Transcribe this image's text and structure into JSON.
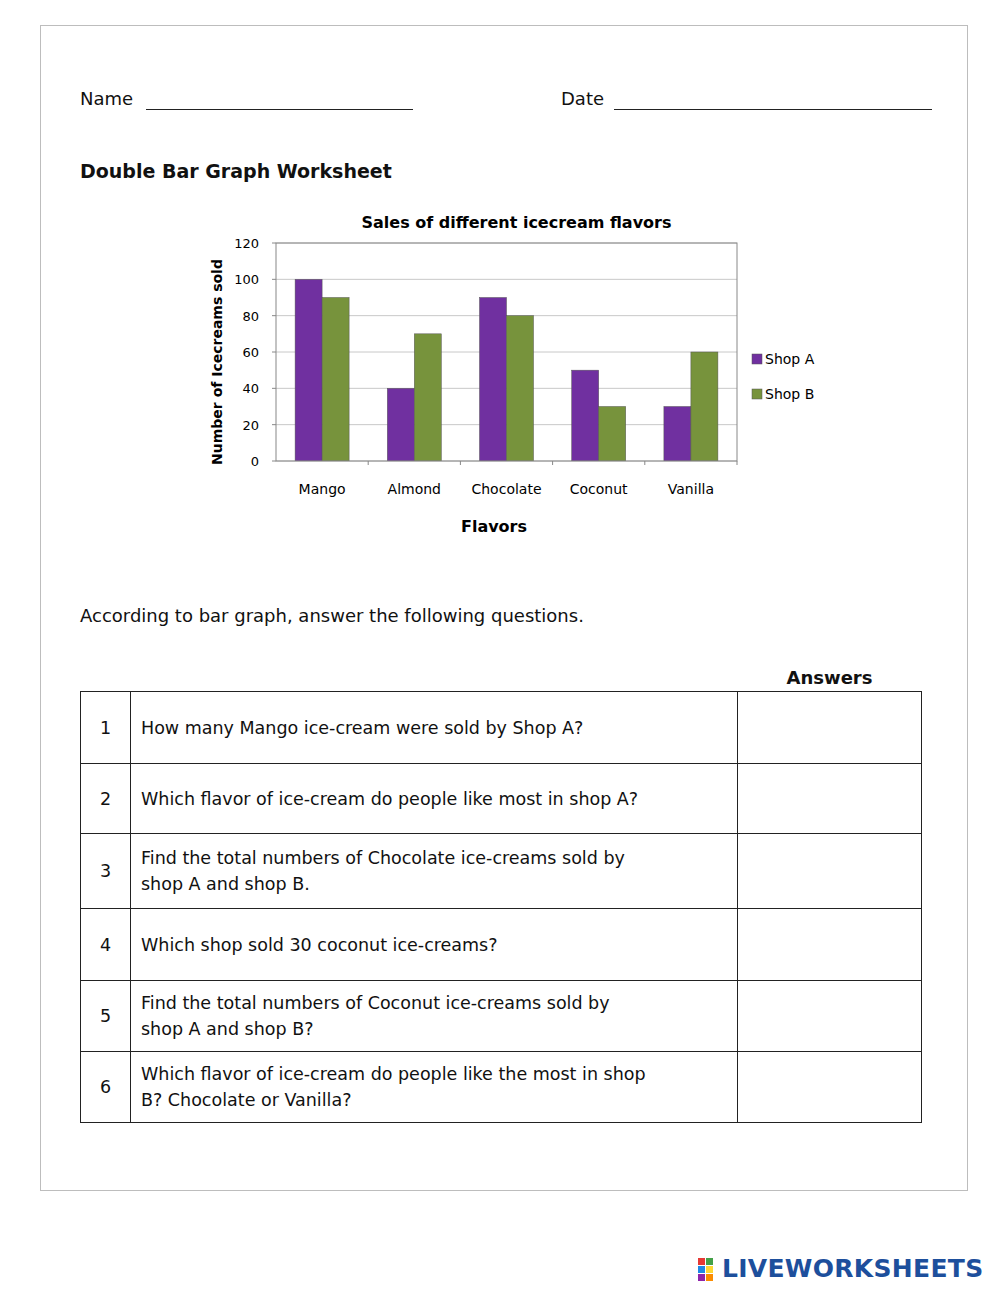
{
  "header": {
    "name_label": "Name",
    "date_label": "Date"
  },
  "title": "Double Bar Graph Worksheet",
  "chart_data": {
    "type": "bar",
    "title": "Sales of different icecream flavors",
    "x_label": "Flavors",
    "y_label": "Number of Icecreams sold",
    "categories": [
      "Mango",
      "Almond",
      "Chocolate",
      "Coconut",
      "Vanilla"
    ],
    "series": [
      {
        "name": "Shop A",
        "color": "#7030a0",
        "values": [
          100,
          40,
          90,
          50,
          30
        ]
      },
      {
        "name": "Shop B",
        "color": "#77933c",
        "values": [
          90,
          70,
          80,
          30,
          60
        ]
      }
    ],
    "ylim": [
      0,
      120
    ],
    "yticks": [
      0,
      20,
      40,
      60,
      80,
      100,
      120
    ],
    "grid": true,
    "legend": "right"
  },
  "instructions": "According to bar graph, answer the following questions.",
  "table": {
    "answers_header": "Answers",
    "rows": [
      {
        "number": 1,
        "question": [
          "How many Mango ice-cream were sold by Shop A?"
        ]
      },
      {
        "number": 2,
        "question": [
          "Which flavor of ice-cream do people like most in shop A?"
        ]
      },
      {
        "number": 3,
        "question": [
          "Find the total numbers of Chocolate ice-creams sold by",
          "shop A and shop B."
        ]
      },
      {
        "number": 4,
        "question": [
          "Which shop sold 30 coconut ice-creams?"
        ]
      },
      {
        "number": 5,
        "question": [
          "Find the total numbers of Coconut ice-creams sold by",
          "shop A and shop B?"
        ]
      },
      {
        "number": 6,
        "question": [
          "Which flavor of ice-cream do people like the most in shop",
          "B? Chocolate or Vanilla?"
        ]
      }
    ]
  },
  "footer": "LIVEWORKSHEETS"
}
